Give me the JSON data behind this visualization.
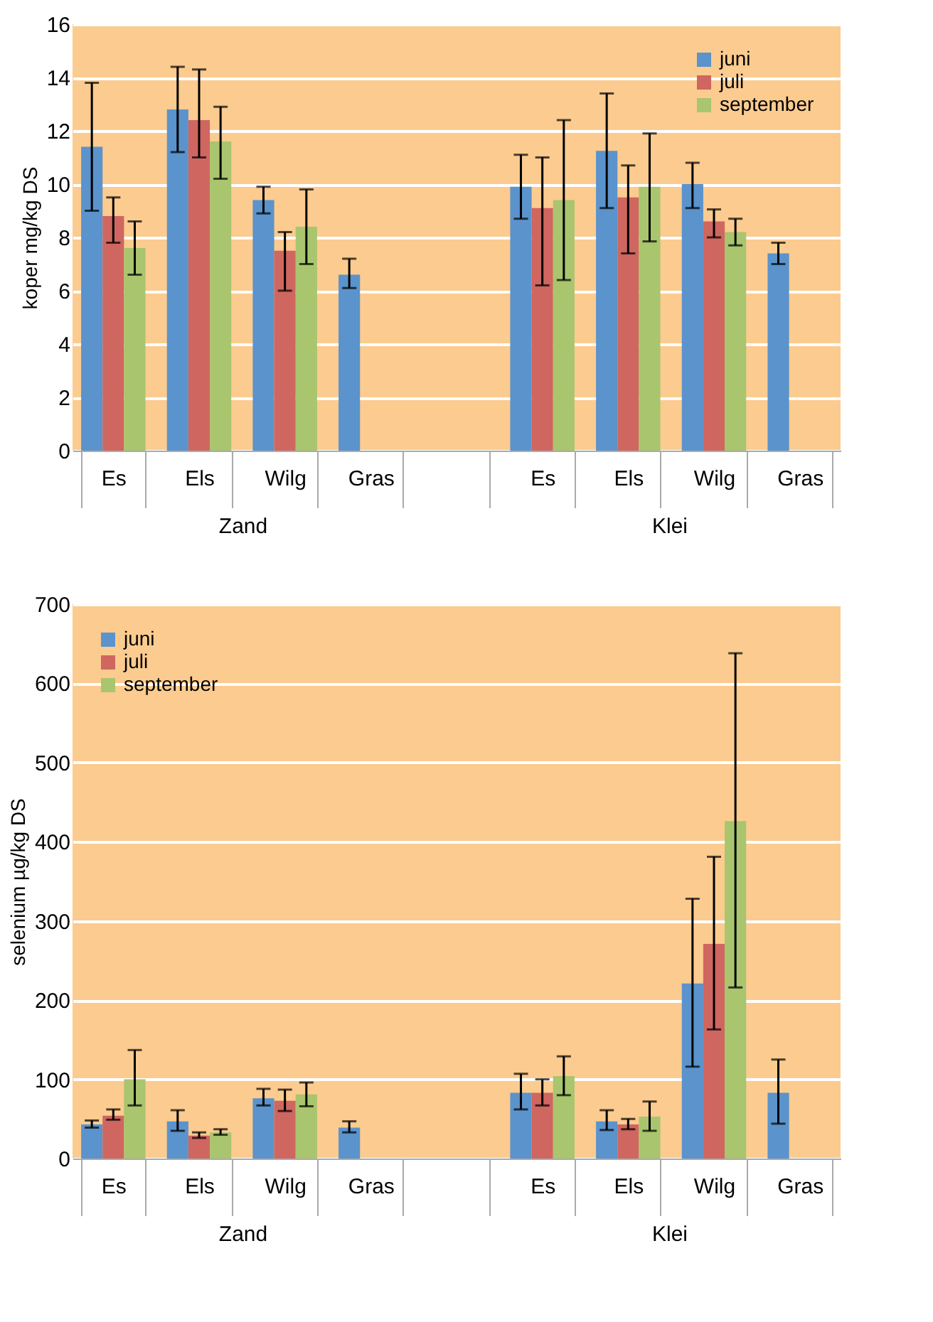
{
  "chart_data": [
    {
      "type": "bar",
      "ylabel": "koper mg/kg DS",
      "categories": [
        "Es",
        "Els",
        "Wilg",
        "Gras",
        null,
        "Es",
        "Els",
        "Wilg",
        "Gras"
      ],
      "annotations": [
        "Zand",
        "Klei"
      ],
      "ylim": [
        0,
        16
      ],
      "yticks": [
        0,
        2,
        4,
        6,
        8,
        10,
        12,
        14,
        16
      ],
      "grid": "y",
      "legend": "top right",
      "series": [
        {
          "name": "juni",
          "color": "#5b93cc",
          "values": [
            11.4,
            12.8,
            9.4,
            6.6,
            null,
            9.9,
            11.25,
            10.0,
            7.4
          ],
          "errors": [
            [
              9.0,
              13.8
            ],
            [
              11.2,
              14.4
            ],
            [
              8.9,
              9.9
            ],
            [
              6.1,
              7.2
            ],
            null,
            [
              8.7,
              11.1
            ],
            [
              9.1,
              13.4
            ],
            [
              9.1,
              10.8
            ],
            [
              7.0,
              7.8
            ]
          ]
        },
        {
          "name": "juli",
          "color": "#cf6660",
          "values": [
            8.8,
            12.4,
            7.5,
            null,
            null,
            9.1,
            9.5,
            8.6,
            null
          ],
          "errors": [
            [
              7.8,
              9.5
            ],
            [
              11.0,
              14.3
            ],
            [
              6.0,
              8.2
            ],
            null,
            null,
            [
              6.2,
              11.0
            ],
            [
              7.4,
              10.7
            ],
            [
              8.0,
              9.05
            ],
            null
          ]
        },
        {
          "name": "september",
          "color": "#a9c56e",
          "values": [
            7.6,
            11.6,
            8.4,
            null,
            null,
            9.4,
            9.9,
            8.2,
            null
          ],
          "errors": [
            [
              6.6,
              8.6
            ],
            [
              10.2,
              12.9
            ],
            [
              7.0,
              9.8
            ],
            null,
            null,
            [
              6.4,
              12.4
            ],
            [
              7.85,
              11.9
            ],
            [
              7.7,
              8.7
            ],
            null
          ]
        }
      ]
    },
    {
      "type": "bar",
      "ylabel": "selenium µg/kg DS",
      "categories": [
        "Es",
        "Els",
        "Wilg",
        "Gras",
        null,
        "Es",
        "Els",
        "Wilg",
        "Gras"
      ],
      "annotations": [
        "Zand",
        "Klei"
      ],
      "ylim": [
        0,
        700
      ],
      "yticks": [
        0,
        100,
        200,
        300,
        400,
        500,
        600,
        700
      ],
      "grid": "y",
      "legend": "top left",
      "series": [
        {
          "name": "juni",
          "color": "#5b93cc",
          "values": [
            43,
            47,
            76,
            39,
            null,
            83,
            47,
            221,
            83
          ],
          "errors": [
            [
              39,
              48
            ],
            [
              35,
              61
            ],
            [
              67,
              88
            ],
            [
              33,
              47
            ],
            null,
            [
              62,
              107
            ],
            [
              36,
              61
            ],
            [
              116,
              328
            ],
            [
              44,
              125
            ]
          ]
        },
        {
          "name": "juli",
          "color": "#cf6660",
          "values": [
            54,
            29,
            73,
            null,
            null,
            83,
            43,
            271,
            null
          ],
          "errors": [
            [
              49,
              62
            ],
            [
              26,
              33
            ],
            [
              60,
              87
            ],
            null,
            null,
            [
              67,
              100
            ],
            [
              37,
              50
            ],
            [
              163,
              381
            ],
            null
          ]
        },
        {
          "name": "september",
          "color": "#a9c56e",
          "values": [
            100,
            33,
            81,
            null,
            null,
            104,
            53,
            426,
            null
          ],
          "errors": [
            [
              67,
              137
            ],
            [
              30,
              37
            ],
            [
              66,
              96
            ],
            null,
            null,
            [
              80,
              129
            ],
            [
              35,
              72
            ],
            [
              216,
              638
            ],
            null
          ]
        }
      ]
    }
  ]
}
